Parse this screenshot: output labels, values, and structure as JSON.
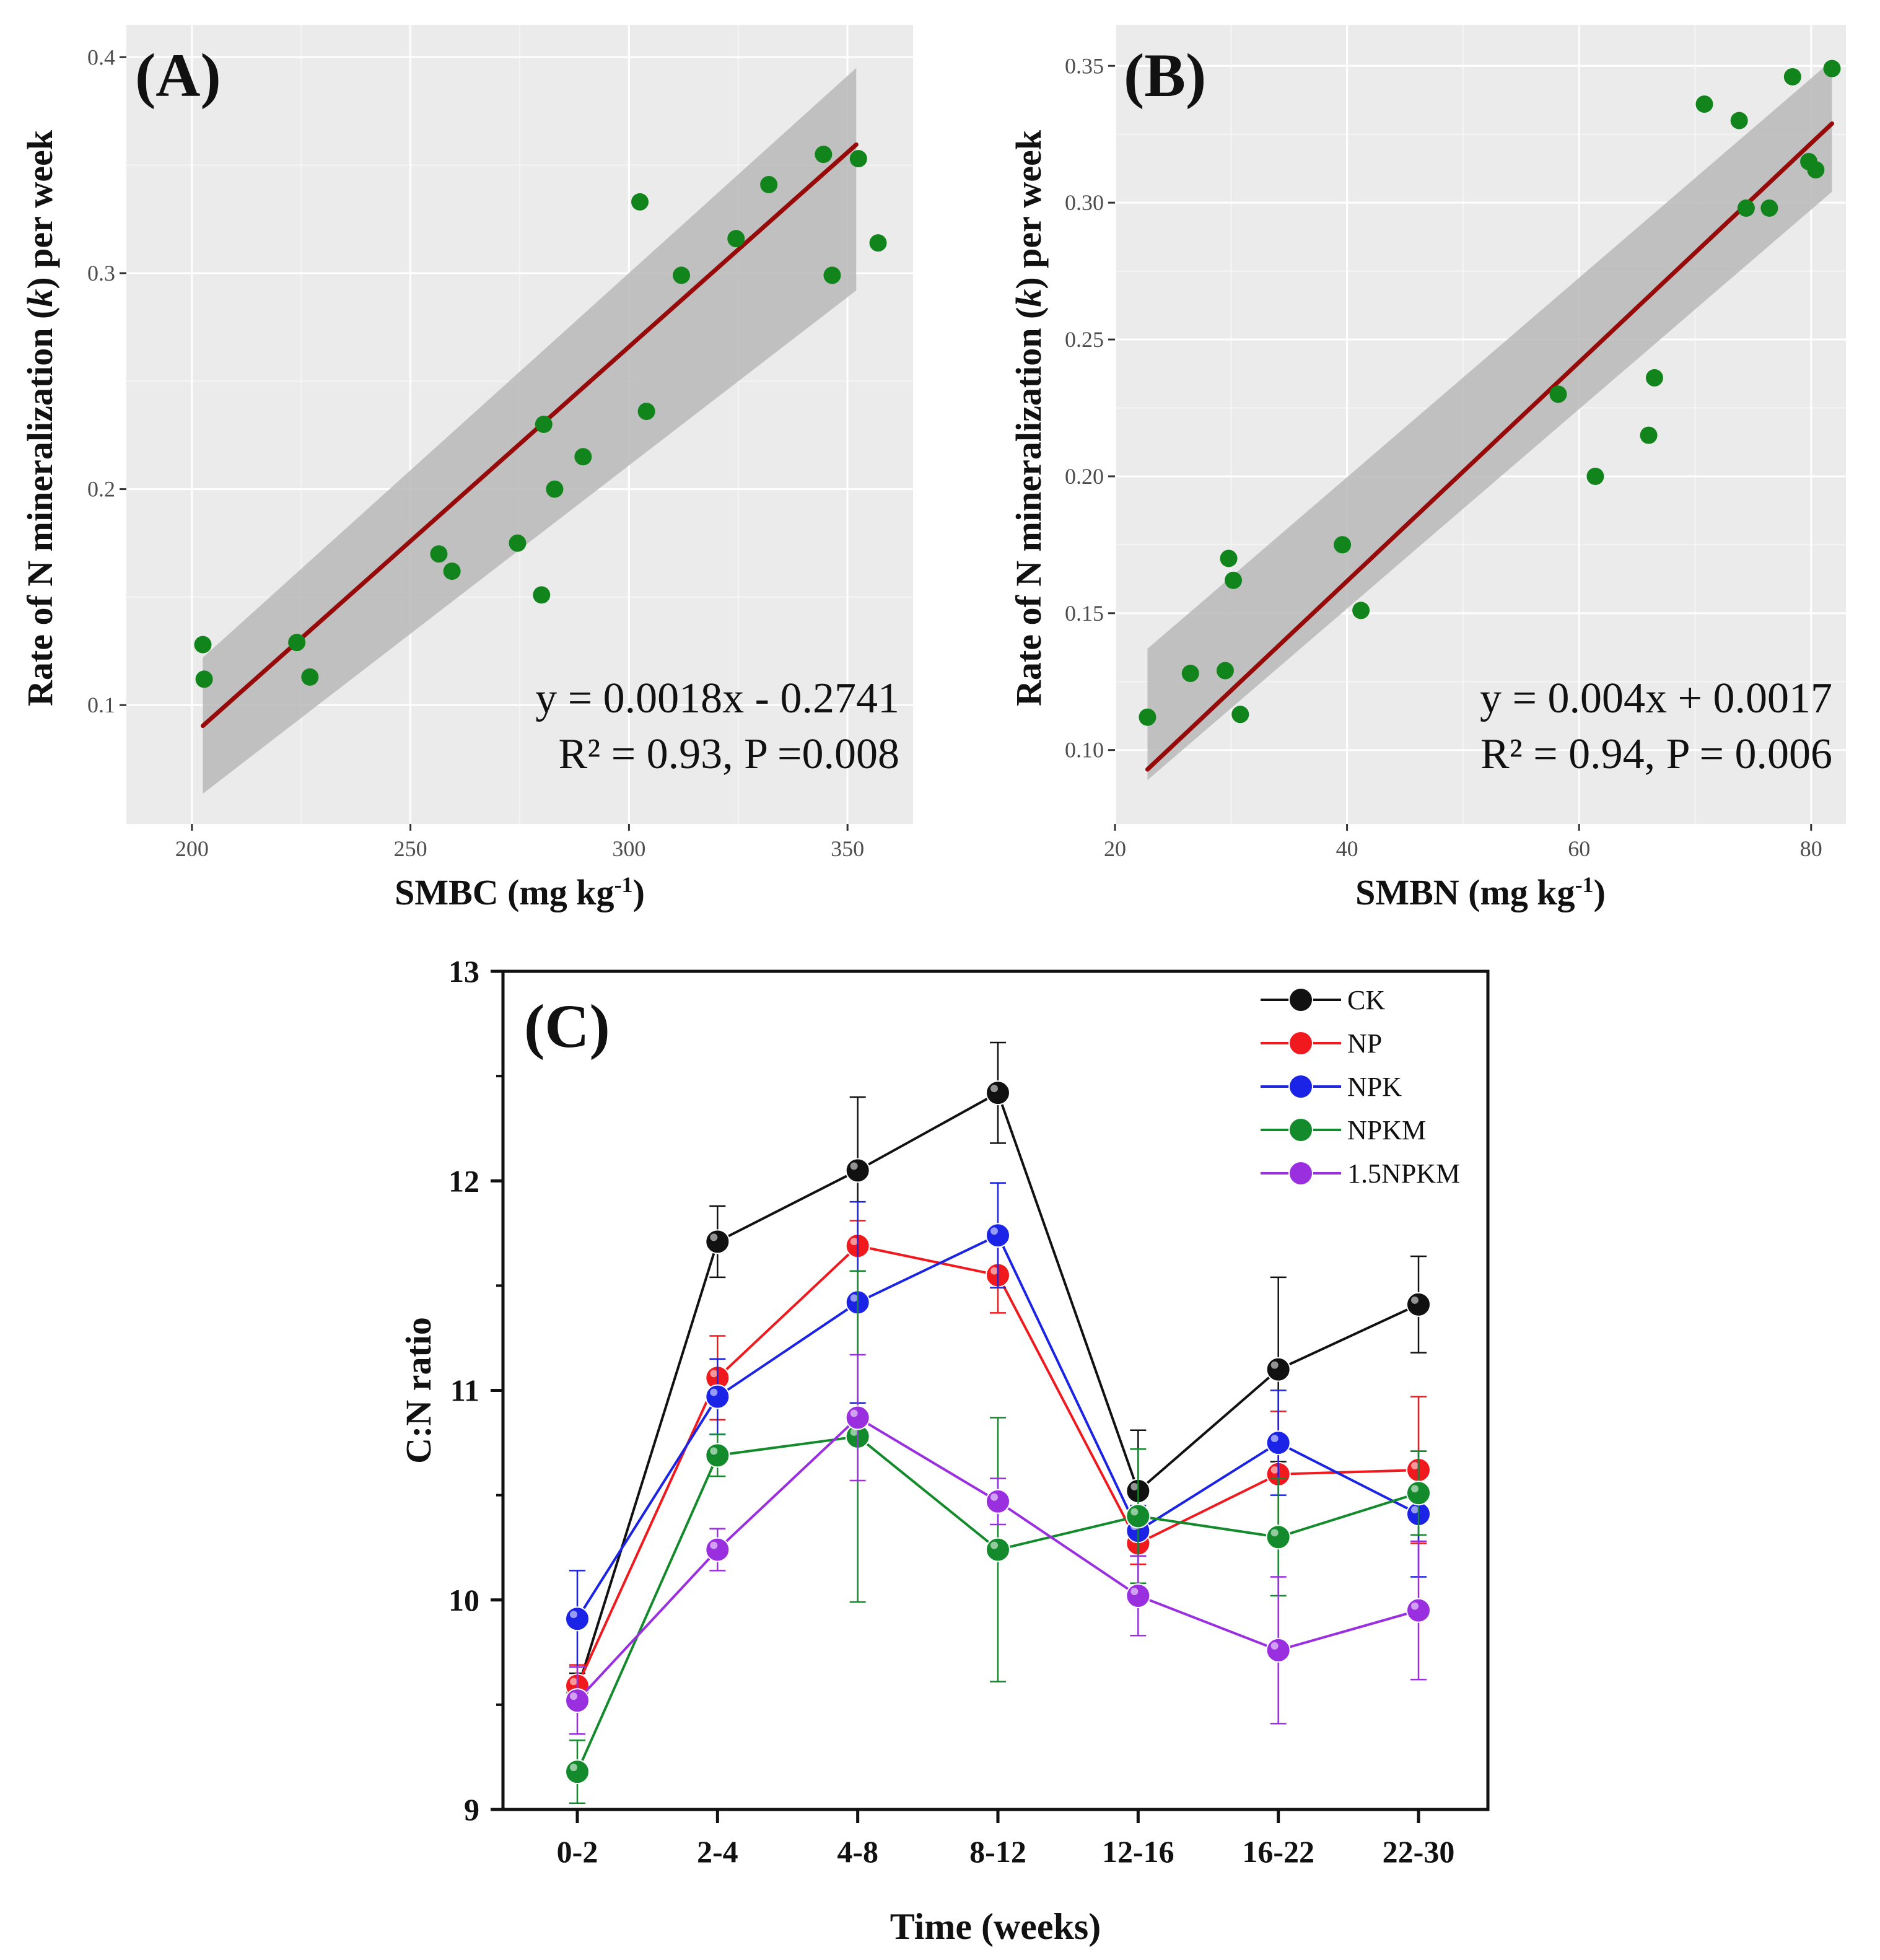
{
  "chart_data": [
    {
      "panel": "A",
      "type": "scatter",
      "panel_label": "(A)",
      "xlabel": "SMBC (mg kg",
      "xlabel_sup": "-1",
      "xlabel_end": ")",
      "ylabel": "Rate of N mineralization (",
      "ylabel_italic": "k",
      "ylabel_end": ") per week",
      "xlim": [
        185,
        365
      ],
      "ylim": [
        0.045,
        0.415
      ],
      "xticks": [
        200,
        250,
        300,
        350
      ],
      "xtick_labels": [
        "200",
        "250",
        "300",
        "350"
      ],
      "yticks": [
        0.1,
        0.2,
        0.3,
        0.4
      ],
      "ytick_labels": [
        "0.1",
        "0.2",
        "0.3",
        "0.4"
      ],
      "points": [
        [
          202.5,
          0.128
        ],
        [
          202.8,
          0.112
        ],
        [
          224,
          0.129
        ],
        [
          227,
          0.113
        ],
        [
          256.5,
          0.17
        ],
        [
          259.5,
          0.162
        ],
        [
          274.5,
          0.175
        ],
        [
          280,
          0.151
        ],
        [
          280.5,
          0.23
        ],
        [
          283,
          0.2
        ],
        [
          289.5,
          0.215
        ],
        [
          302.5,
          0.333
        ],
        [
          304,
          0.236
        ],
        [
          312,
          0.299
        ],
        [
          324.5,
          0.316
        ],
        [
          332,
          0.341
        ],
        [
          344.5,
          0.355
        ],
        [
          346.5,
          0.299
        ],
        [
          352.5,
          0.353
        ],
        [
          357,
          0.314
        ]
      ],
      "fit": {
        "slope": 0.0018,
        "intercept": -0.2741,
        "x_range": [
          202.5,
          352
        ]
      },
      "ci_lower": [
        0.059,
        0.292
      ],
      "ci_upper": [
        0.122,
        0.395
      ],
      "equation": "y = 0.0018x - 0.2741",
      "stats": "R² = 0.93, P =0.008",
      "colors": {
        "point": "#11851c",
        "line": "#960a0a",
        "band": "#b8b8b8",
        "panel": "#ebebeb"
      }
    },
    {
      "panel": "B",
      "type": "scatter",
      "panel_label": "(B)",
      "xlabel": "SMBN (mg kg",
      "xlabel_sup": "-1",
      "xlabel_end": ")",
      "ylabel": "Rate of N mineralization (",
      "ylabel_italic": "k",
      "ylabel_end": ") per week",
      "xlim": [
        20,
        83
      ],
      "ylim": [
        0.073,
        0.365
      ],
      "xticks": [
        20,
        40,
        60,
        80
      ],
      "xtick_labels": [
        "20",
        "40",
        "60",
        "80"
      ],
      "yticks": [
        0.1,
        0.15,
        0.2,
        0.25,
        0.3,
        0.35
      ],
      "ytick_labels": [
        "0.10",
        "0.15",
        "0.20",
        "0.25",
        "0.30",
        "0.35"
      ],
      "points": [
        [
          22.8,
          0.112
        ],
        [
          26.5,
          0.128
        ],
        [
          29.5,
          0.129
        ],
        [
          29.8,
          0.17
        ],
        [
          30.2,
          0.162
        ],
        [
          30.8,
          0.113
        ],
        [
          39.6,
          0.175
        ],
        [
          41.2,
          0.151
        ],
        [
          58.2,
          0.23
        ],
        [
          61.4,
          0.2
        ],
        [
          66,
          0.215
        ],
        [
          66.5,
          0.236
        ],
        [
          70.8,
          0.336
        ],
        [
          73.8,
          0.33
        ],
        [
          74.4,
          0.298
        ],
        [
          76.4,
          0.298
        ],
        [
          78.4,
          0.346
        ],
        [
          79.8,
          0.315
        ],
        [
          80.4,
          0.312
        ],
        [
          81.8,
          0.349
        ]
      ],
      "fit": {
        "slope": 0.004,
        "intercept": 0.0017,
        "x_range": [
          22.8,
          81.8
        ]
      },
      "ci_lower": [
        0.089,
        0.304
      ],
      "ci_upper": [
        0.137,
        0.352
      ],
      "equation": "y = 0.004x + 0.0017",
      "stats": "R² = 0.94, P = 0.006",
      "colors": {
        "point": "#11851c",
        "line": "#960a0a",
        "band": "#b8b8b8",
        "panel": "#ebebeb"
      }
    },
    {
      "panel": "C",
      "type": "line",
      "panel_label": "(C)",
      "xlabel": "Time (weeks)",
      "ylabel": "C:N ratio",
      "ylim": [
        9,
        13
      ],
      "yticks": [
        9,
        10,
        11,
        12,
        13
      ],
      "ytick_labels": [
        "9",
        "10",
        "11",
        "12",
        "13"
      ],
      "categories": [
        "0-2",
        "2-4",
        "4-8",
        "8-12",
        "12-16",
        "16-22",
        "22-30"
      ],
      "series": [
        {
          "name": "CK",
          "color": "#111111",
          "values": [
            9.57,
            11.71,
            12.05,
            12.42,
            10.52,
            11.1,
            11.41
          ],
          "errors": [
            0.08,
            0.17,
            0.35,
            0.24,
            0.29,
            0.44,
            0.23
          ]
        },
        {
          "name": "NP",
          "color": "#f0191e",
          "values": [
            9.59,
            11.06,
            11.69,
            11.55,
            10.27,
            10.6,
            10.62
          ],
          "errors": [
            0.1,
            0.2,
            0.12,
            0.18,
            0.1,
            0.3,
            0.35
          ]
        },
        {
          "name": "NPK",
          "color": "#1a23e6",
          "values": [
            9.91,
            10.97,
            11.42,
            11.74,
            10.33,
            10.75,
            10.41
          ],
          "errors": [
            0.23,
            0.18,
            0.48,
            0.25,
            0.12,
            0.25,
            0.3
          ]
        },
        {
          "name": "NPKM",
          "color": "#138a2c",
          "values": [
            9.18,
            10.69,
            10.78,
            10.24,
            10.4,
            10.3,
            10.51
          ],
          "errors": [
            0.15,
            0.1,
            0.79,
            0.63,
            0.32,
            0.28,
            0.2
          ]
        },
        {
          "name": "1.5NPKM",
          "color": "#9a2fe0",
          "values": [
            9.52,
            10.24,
            10.87,
            10.47,
            10.02,
            9.76,
            9.95
          ],
          "errors": [
            0.16,
            0.1,
            0.3,
            0.11,
            0.19,
            0.35,
            0.33
          ]
        }
      ]
    }
  ]
}
